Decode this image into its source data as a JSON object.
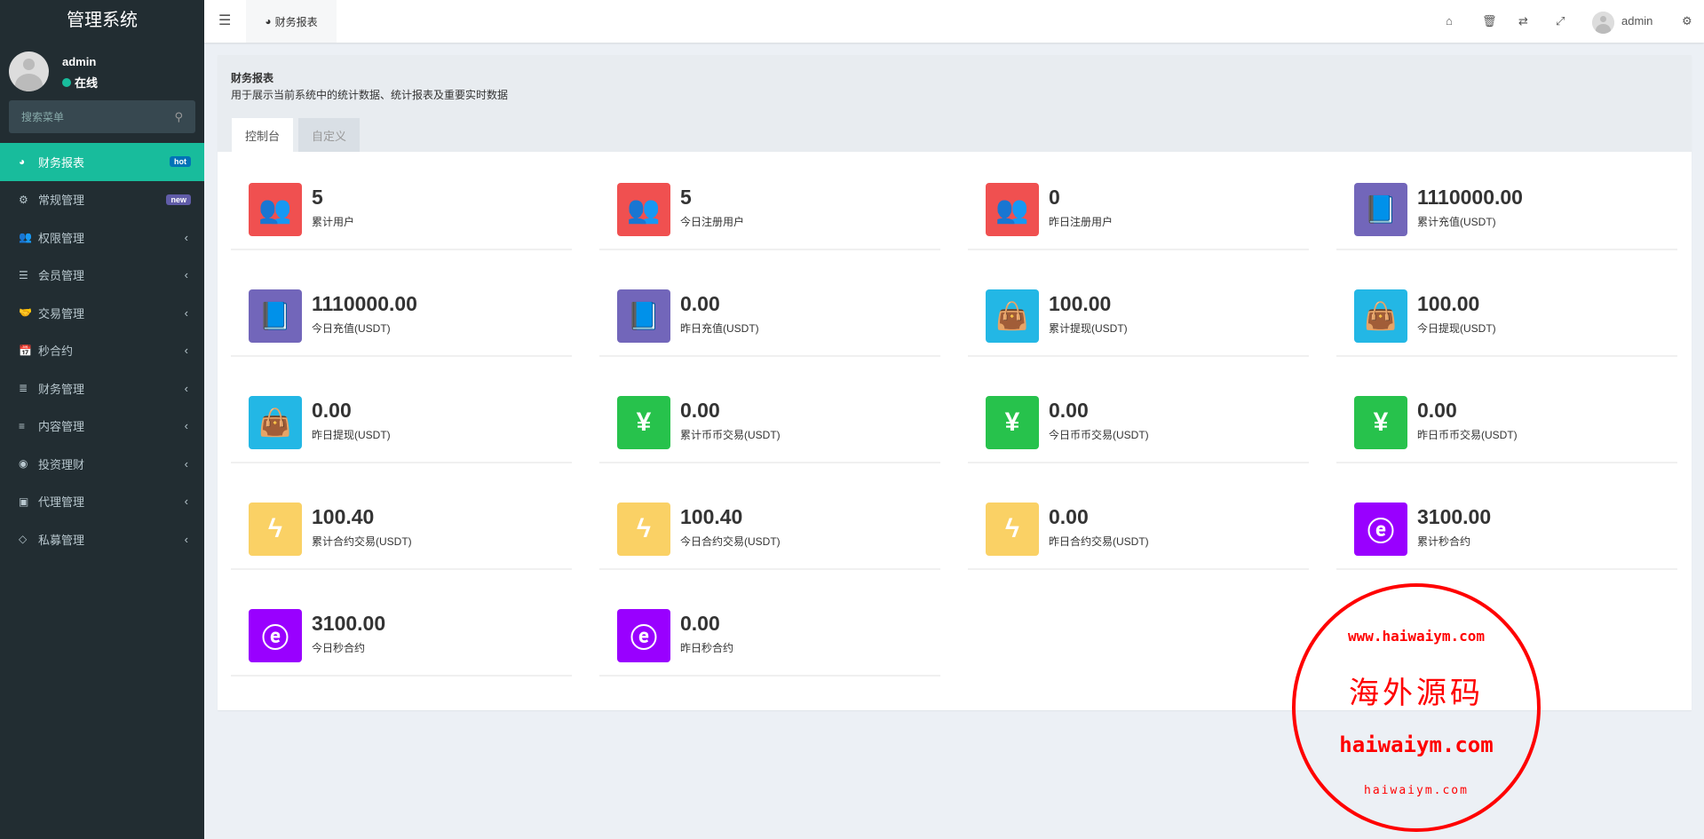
{
  "sidebar": {
    "logo": "管理系统",
    "user": {
      "name": "admin",
      "status": "在线"
    },
    "search_placeholder": "搜索菜单",
    "items": [
      {
        "label": "财务报表",
        "icon": "dashboard-icon",
        "badge": "hot",
        "badge_color": "#0073b7",
        "active": true
      },
      {
        "label": "常规管理",
        "icon": "cogs-icon",
        "badge": "new",
        "badge_color": "#605ca8"
      },
      {
        "label": "权限管理",
        "icon": "users-icon"
      },
      {
        "label": "会员管理",
        "icon": "list-icon"
      },
      {
        "label": "交易管理",
        "icon": "handshake-icon"
      },
      {
        "label": "秒合约",
        "icon": "calendar-x-icon"
      },
      {
        "label": "财务管理",
        "icon": "database-icon"
      },
      {
        "label": "内容管理",
        "icon": "align-left-icon"
      },
      {
        "label": "投资理财",
        "icon": "chrome-icon"
      },
      {
        "label": "代理管理",
        "icon": "briefcase-icon"
      },
      {
        "label": "私募管理",
        "icon": "diamond-icon"
      }
    ]
  },
  "header": {
    "tab": "财务报表",
    "user": "admin",
    "icons": [
      "home-icon",
      "trash-icon",
      "translate-icon",
      "fullscreen-icon",
      "cogs-icon"
    ]
  },
  "panel": {
    "title": "财务报表",
    "description": "用于展示当前系统中的统计数据、统计报表及重要实时数据",
    "tabs": [
      "控制台",
      "自定义"
    ]
  },
  "stats": [
    {
      "value": "5",
      "label": "累计用户",
      "icon": "users-icon",
      "color": "#f05050"
    },
    {
      "value": "5",
      "label": "今日注册用户",
      "icon": "users-icon",
      "color": "#f05050"
    },
    {
      "value": "0",
      "label": "昨日注册用户",
      "icon": "users-icon",
      "color": "#f05050"
    },
    {
      "value": "1110000.00",
      "label": "累计充值(USDT)",
      "icon": "book-icon",
      "color": "#7266ba"
    },
    {
      "value": "1110000.00",
      "label": "今日充值(USDT)",
      "icon": "book-icon",
      "color": "#7266ba"
    },
    {
      "value": "0.00",
      "label": "昨日充值(USDT)",
      "icon": "book-icon",
      "color": "#7266ba"
    },
    {
      "value": "100.00",
      "label": "累计提现(USDT)",
      "icon": "shopping-bag-icon",
      "color": "#23b7e5"
    },
    {
      "value": "100.00",
      "label": "今日提现(USDT)",
      "icon": "shopping-bag-icon",
      "color": "#23b7e5"
    },
    {
      "value": "0.00",
      "label": "昨日提现(USDT)",
      "icon": "shopping-bag-icon",
      "color": "#23b7e5"
    },
    {
      "value": "0.00",
      "label": "累计币币交易(USDT)",
      "icon": "yen-icon",
      "color": "#27c24c"
    },
    {
      "value": "0.00",
      "label": "今日币币交易(USDT)",
      "icon": "yen-icon",
      "color": "#27c24c"
    },
    {
      "value": "0.00",
      "label": "昨日币币交易(USDT)",
      "icon": "yen-icon",
      "color": "#27c24c"
    },
    {
      "value": "100.40",
      "label": "累计合约交易(USDT)",
      "icon": "bolt-icon",
      "color": "#fad165"
    },
    {
      "value": "100.40",
      "label": "今日合约交易(USDT)",
      "icon": "bolt-icon",
      "color": "#fad165"
    },
    {
      "value": "0.00",
      "label": "昨日合约交易(USDT)",
      "icon": "bolt-icon",
      "color": "#fad165"
    },
    {
      "value": "3100.00",
      "label": "累计秒合约",
      "icon": "orbit-icon",
      "color": "#9900ff"
    },
    {
      "value": "3100.00",
      "label": "今日秒合约",
      "icon": "orbit-icon",
      "color": "#9900ff"
    },
    {
      "value": "0.00",
      "label": "昨日秒合约",
      "icon": "orbit-icon",
      "color": "#9900ff"
    }
  ],
  "watermark": {
    "outer": "www.haiwaiym.com",
    "center": "海外源码",
    "domain": "haiwaiym.com",
    "bottom": "haiwaiym.com",
    "color": "#ff0000"
  }
}
